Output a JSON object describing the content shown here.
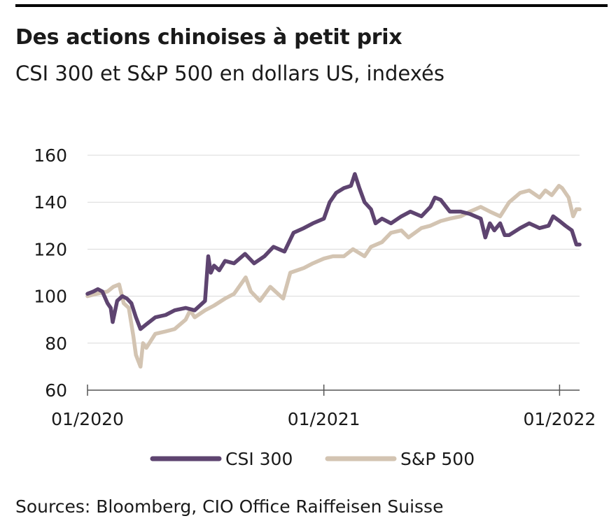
{
  "header": {
    "title": "Des actions chinoises à petit prix",
    "subtitle": "CSI 300 et S&P 500 en dollars US, indexés"
  },
  "footer": {
    "source": "Sources: Bloomberg, CIO Office Raiffeisen Suisse"
  },
  "chart_data": {
    "type": "line",
    "title": "Des actions chinoises à petit prix",
    "subtitle": "CSI 300 et S&P 500 en dollars US, indexés",
    "xlabel": "",
    "ylabel": "",
    "ylim": [
      60,
      160
    ],
    "xlim": [
      "2020-01-01",
      "2022-02-01"
    ],
    "yticks": [
      60,
      80,
      100,
      120,
      140,
      160
    ],
    "xticks": [
      {
        "date": "2020-01-01",
        "label": "01/2020"
      },
      {
        "date": "2021-01-01",
        "label": "01/2021"
      },
      {
        "date": "2022-01-01",
        "label": "01/2022"
      }
    ],
    "grid": true,
    "legend": "bottom",
    "series": [
      {
        "name": "CSI 300",
        "color": "#5e4470",
        "points": [
          [
            "2020-01-01",
            101
          ],
          [
            "2020-01-10",
            102
          ],
          [
            "2020-01-17",
            103
          ],
          [
            "2020-01-24",
            102
          ],
          [
            "2020-02-01",
            97
          ],
          [
            "2020-02-06",
            95
          ],
          [
            "2020-02-09",
            89
          ],
          [
            "2020-02-16",
            98
          ],
          [
            "2020-02-24",
            100
          ],
          [
            "2020-03-02",
            99
          ],
          [
            "2020-03-09",
            97
          ],
          [
            "2020-03-16",
            91
          ],
          [
            "2020-03-23",
            86
          ],
          [
            "2020-04-01",
            88
          ],
          [
            "2020-04-15",
            91
          ],
          [
            "2020-05-01",
            92
          ],
          [
            "2020-05-15",
            94
          ],
          [
            "2020-06-01",
            95
          ],
          [
            "2020-06-15",
            94
          ],
          [
            "2020-07-01",
            98
          ],
          [
            "2020-07-06",
            117
          ],
          [
            "2020-07-10",
            110
          ],
          [
            "2020-07-15",
            113
          ],
          [
            "2020-07-23",
            111
          ],
          [
            "2020-08-01",
            115
          ],
          [
            "2020-08-15",
            114
          ],
          [
            "2020-09-01",
            118
          ],
          [
            "2020-09-15",
            114
          ],
          [
            "2020-10-01",
            117
          ],
          [
            "2020-10-15",
            121
          ],
          [
            "2020-11-01",
            119
          ],
          [
            "2020-11-15",
            127
          ],
          [
            "2020-12-01",
            129
          ],
          [
            "2020-12-15",
            131
          ],
          [
            "2021-01-01",
            133
          ],
          [
            "2021-01-10",
            140
          ],
          [
            "2021-01-20",
            144
          ],
          [
            "2021-02-01",
            146
          ],
          [
            "2021-02-12",
            147
          ],
          [
            "2021-02-18",
            152
          ],
          [
            "2021-02-25",
            146
          ],
          [
            "2021-03-05",
            140
          ],
          [
            "2021-03-15",
            137
          ],
          [
            "2021-03-22",
            131
          ],
          [
            "2021-04-01",
            133
          ],
          [
            "2021-04-15",
            131
          ],
          [
            "2021-05-01",
            134
          ],
          [
            "2021-05-15",
            136
          ],
          [
            "2021-06-01",
            134
          ],
          [
            "2021-06-15",
            138
          ],
          [
            "2021-06-22",
            142
          ],
          [
            "2021-07-01",
            141
          ],
          [
            "2021-07-15",
            136
          ],
          [
            "2021-08-01",
            136
          ],
          [
            "2021-08-15",
            135
          ],
          [
            "2021-09-01",
            133
          ],
          [
            "2021-09-08",
            125
          ],
          [
            "2021-09-15",
            131
          ],
          [
            "2021-09-22",
            128
          ],
          [
            "2021-10-01",
            131
          ],
          [
            "2021-10-08",
            126
          ],
          [
            "2021-10-15",
            126
          ],
          [
            "2021-11-01",
            129
          ],
          [
            "2021-11-15",
            131
          ],
          [
            "2021-12-01",
            129
          ],
          [
            "2021-12-15",
            130
          ],
          [
            "2021-12-22",
            134
          ],
          [
            "2022-01-01",
            132
          ],
          [
            "2022-01-10",
            130
          ],
          [
            "2022-01-20",
            128
          ],
          [
            "2022-01-27",
            122
          ],
          [
            "2022-02-01",
            122
          ]
        ]
      },
      {
        "name": "S&P 500",
        "color": "#d3c4b2",
        "points": [
          [
            "2020-01-01",
            100
          ],
          [
            "2020-01-15",
            101
          ],
          [
            "2020-02-01",
            102
          ],
          [
            "2020-02-10",
            104
          ],
          [
            "2020-02-19",
            105
          ],
          [
            "2020-02-26",
            97
          ],
          [
            "2020-03-05",
            95
          ],
          [
            "2020-03-12",
            83
          ],
          [
            "2020-03-16",
            75
          ],
          [
            "2020-03-23",
            70
          ],
          [
            "2020-03-27",
            80
          ],
          [
            "2020-04-01",
            78
          ],
          [
            "2020-04-15",
            84
          ],
          [
            "2020-05-01",
            85
          ],
          [
            "2020-05-15",
            86
          ],
          [
            "2020-06-01",
            90
          ],
          [
            "2020-06-08",
            94
          ],
          [
            "2020-06-15",
            91
          ],
          [
            "2020-07-01",
            94
          ],
          [
            "2020-07-15",
            96
          ],
          [
            "2020-08-01",
            99
          ],
          [
            "2020-08-15",
            101
          ],
          [
            "2020-09-02",
            108
          ],
          [
            "2020-09-10",
            102
          ],
          [
            "2020-09-24",
            98
          ],
          [
            "2020-10-10",
            104
          ],
          [
            "2020-10-30",
            99
          ],
          [
            "2020-11-10",
            110
          ],
          [
            "2020-12-01",
            112
          ],
          [
            "2020-12-15",
            114
          ],
          [
            "2021-01-01",
            116
          ],
          [
            "2021-01-15",
            117
          ],
          [
            "2021-02-01",
            117
          ],
          [
            "2021-02-15",
            120
          ],
          [
            "2021-03-05",
            117
          ],
          [
            "2021-03-15",
            121
          ],
          [
            "2021-04-01",
            123
          ],
          [
            "2021-04-15",
            127
          ],
          [
            "2021-05-01",
            128
          ],
          [
            "2021-05-12",
            125
          ],
          [
            "2021-06-01",
            129
          ],
          [
            "2021-06-15",
            130
          ],
          [
            "2021-07-01",
            132
          ],
          [
            "2021-07-15",
            133
          ],
          [
            "2021-08-01",
            134
          ],
          [
            "2021-08-15",
            136
          ],
          [
            "2021-09-01",
            138
          ],
          [
            "2021-09-15",
            136
          ],
          [
            "2021-10-01",
            134
          ],
          [
            "2021-10-15",
            140
          ],
          [
            "2021-11-01",
            144
          ],
          [
            "2021-11-15",
            145
          ],
          [
            "2021-12-01",
            142
          ],
          [
            "2021-12-10",
            145
          ],
          [
            "2021-12-20",
            143
          ],
          [
            "2021-12-31",
            147
          ],
          [
            "2022-01-05",
            146
          ],
          [
            "2022-01-15",
            142
          ],
          [
            "2022-01-22",
            134
          ],
          [
            "2022-01-27",
            137
          ],
          [
            "2022-02-01",
            137
          ]
        ]
      }
    ]
  }
}
